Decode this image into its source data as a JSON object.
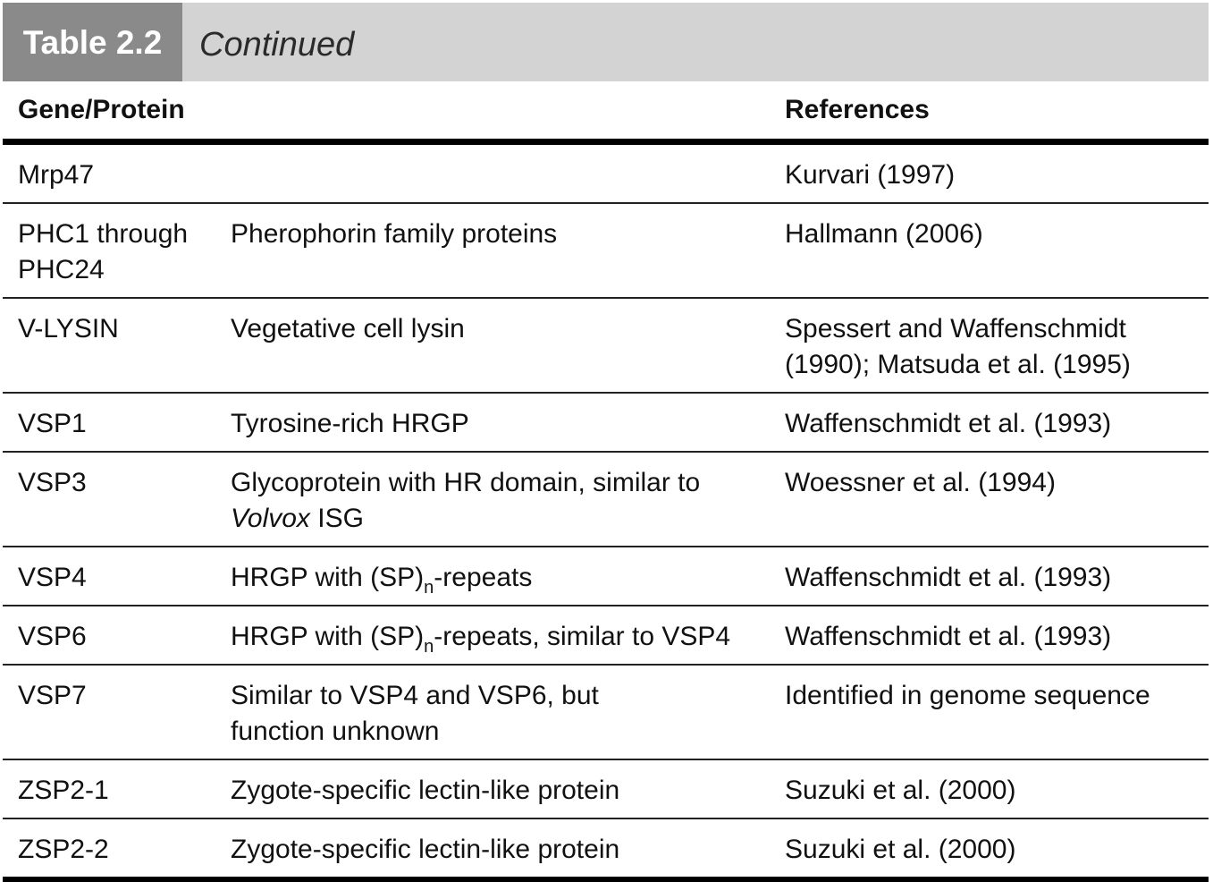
{
  "header": {
    "table_label": "Table 2.2",
    "subtitle": "Continued"
  },
  "columns": {
    "gene": "Gene/Protein",
    "description": "",
    "references": "References"
  },
  "rows": [
    {
      "gene": "Mrp47",
      "description": "",
      "references": "Kurvari (1997)"
    },
    {
      "gene": "PHC1 through PHC24",
      "description": "Pherophorin family proteins",
      "references": "Hallmann (2006)"
    },
    {
      "gene": "V-LYSIN",
      "description": "Vegetative cell lysin",
      "references": "Spessert and Waffenschmidt (1990); Matsuda et al. (1995)"
    },
    {
      "gene": "VSP1",
      "description": "Tyrosine-rich HRGP",
      "references": "Waffenschmidt et al. (1993)"
    },
    {
      "gene": "VSP3",
      "description_main": "Glycoprotein with HR domain, similar to",
      "description_italic": "Volvox",
      "description_tail": " ISG",
      "references": "Woessner et al. (1994)"
    },
    {
      "gene": "VSP4",
      "description_pre": "HRGP with (SP)",
      "description_sub": "n",
      "description_post": "-repeats",
      "references": "Waffenschmidt et al. (1993)"
    },
    {
      "gene": "VSP6",
      "description_pre": "HRGP with (SP)",
      "description_sub": "n",
      "description_post": "-repeats, similar to VSP4",
      "references": "Waffenschmidt et al. (1993)"
    },
    {
      "gene": "VSP7",
      "description": "Similar to VSP4 and VSP6, but function unknown",
      "references": "Identified in genome sequence"
    },
    {
      "gene": "ZSP2-1",
      "description": "Zygote-specific lectin-like protein",
      "references": "Suzuki et al. (2000)"
    },
    {
      "gene": "ZSP2-2",
      "description": "Zygote-specific lectin-like protein",
      "references": "Suzuki et al. (2000)"
    }
  ]
}
